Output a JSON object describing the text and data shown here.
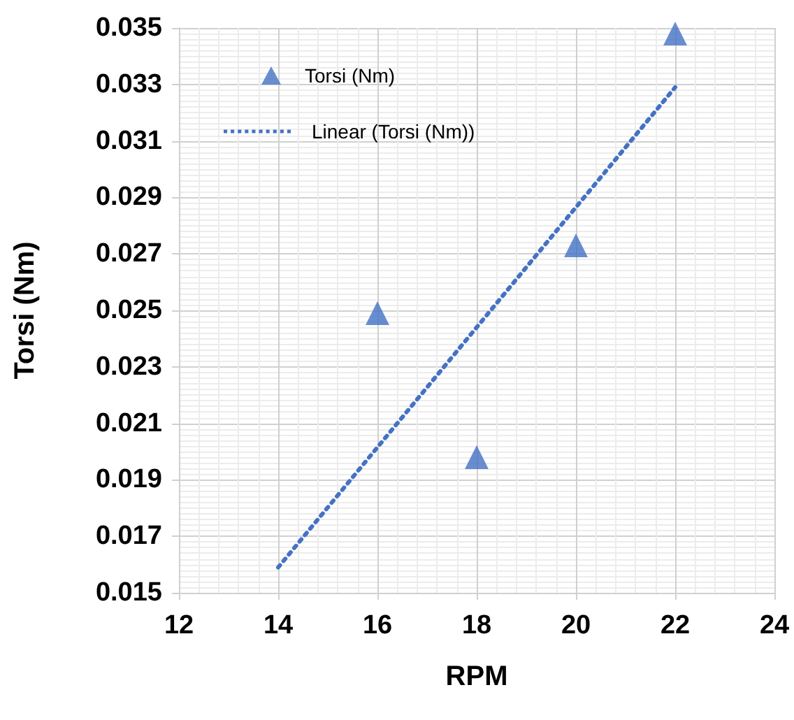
{
  "chart_data": {
    "type": "scatter",
    "xlabel": "RPM",
    "ylabel": "Torsi (Nm)",
    "xlim": [
      12,
      24
    ],
    "xticks": [
      12,
      14,
      16,
      18,
      20,
      22,
      24
    ],
    "ylim": [
      0.015,
      0.035
    ],
    "yticks": [
      0.015,
      0.017,
      0.019,
      0.021,
      0.023,
      0.025,
      0.027,
      0.029,
      0.031,
      0.033,
      0.035
    ],
    "grid": true,
    "legend": "top left",
    "marker": "triangle",
    "series": [
      {
        "name": "Torsi (Nm)",
        "color": "#4472c4",
        "x": [
          16,
          18,
          20,
          22
        ],
        "values": [
          0.0249,
          0.0198,
          0.0273,
          0.0348
        ]
      },
      {
        "name": "Linear (Torsi (Nm))",
        "type": "line",
        "color": "#4472c4",
        "line_style": "dotted",
        "marker": "none",
        "x": [
          14,
          22
        ],
        "values": [
          0.0159,
          0.0329
        ]
      }
    ]
  }
}
